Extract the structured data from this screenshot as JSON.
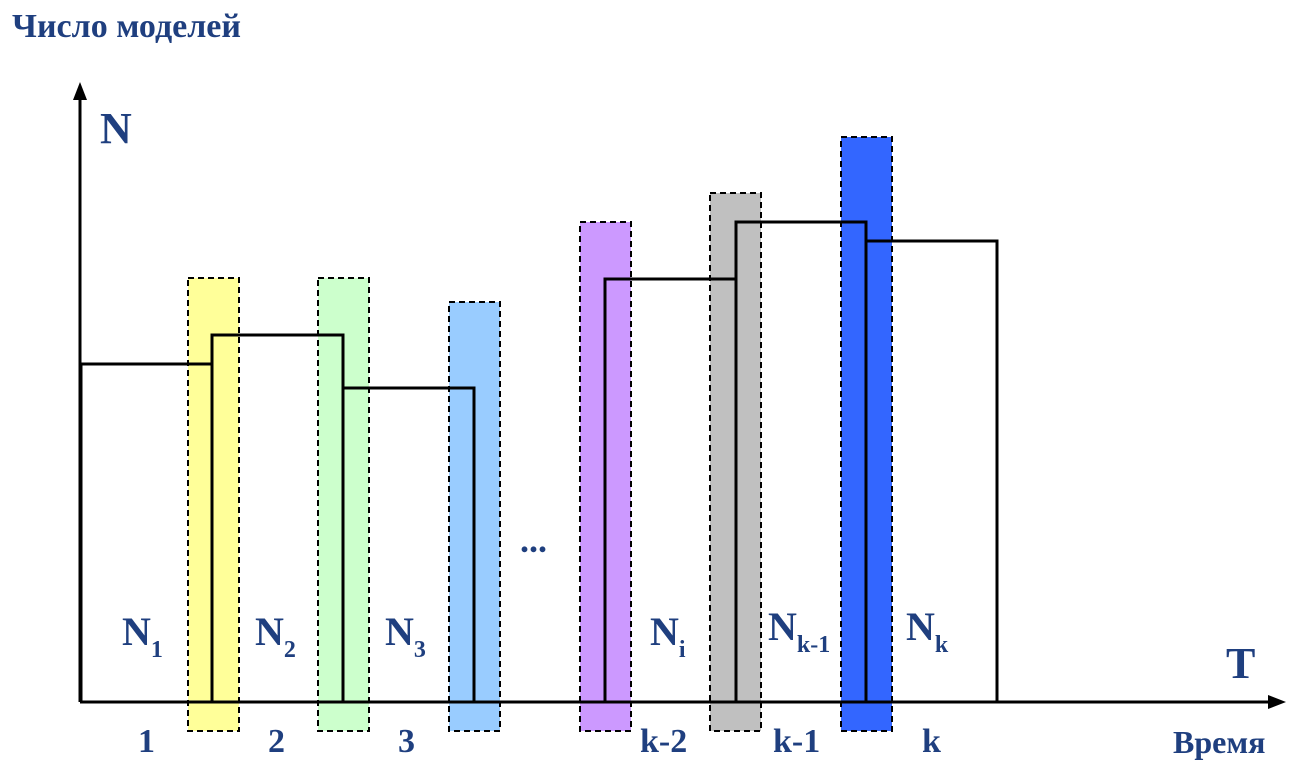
{
  "title": "Число моделей",
  "axes": {
    "y_label": "N",
    "x_label": "T",
    "x_caption": "Время"
  },
  "colors": {
    "text": "#1f3f7f",
    "line": "#000000",
    "period_1": "#ffff99",
    "period_2": "#ccffcc",
    "period_3": "#99ccff",
    "period_km2": "#cc99ff",
    "period_km1": "#c0c0c0",
    "period_k": "#3366ff"
  },
  "ellipsis": "...",
  "segment_labels": [
    {
      "main": "N",
      "sub": "1"
    },
    {
      "main": "N",
      "sub": "2"
    },
    {
      "main": "N",
      "sub": "3"
    },
    {
      "main": "N",
      "sub": "i"
    },
    {
      "main": "N",
      "sub": "k-1"
    },
    {
      "main": "N",
      "sub": "k"
    }
  ],
  "tick_labels": [
    "1",
    "2",
    "3",
    "k-2",
    "k-1",
    "k"
  ]
}
